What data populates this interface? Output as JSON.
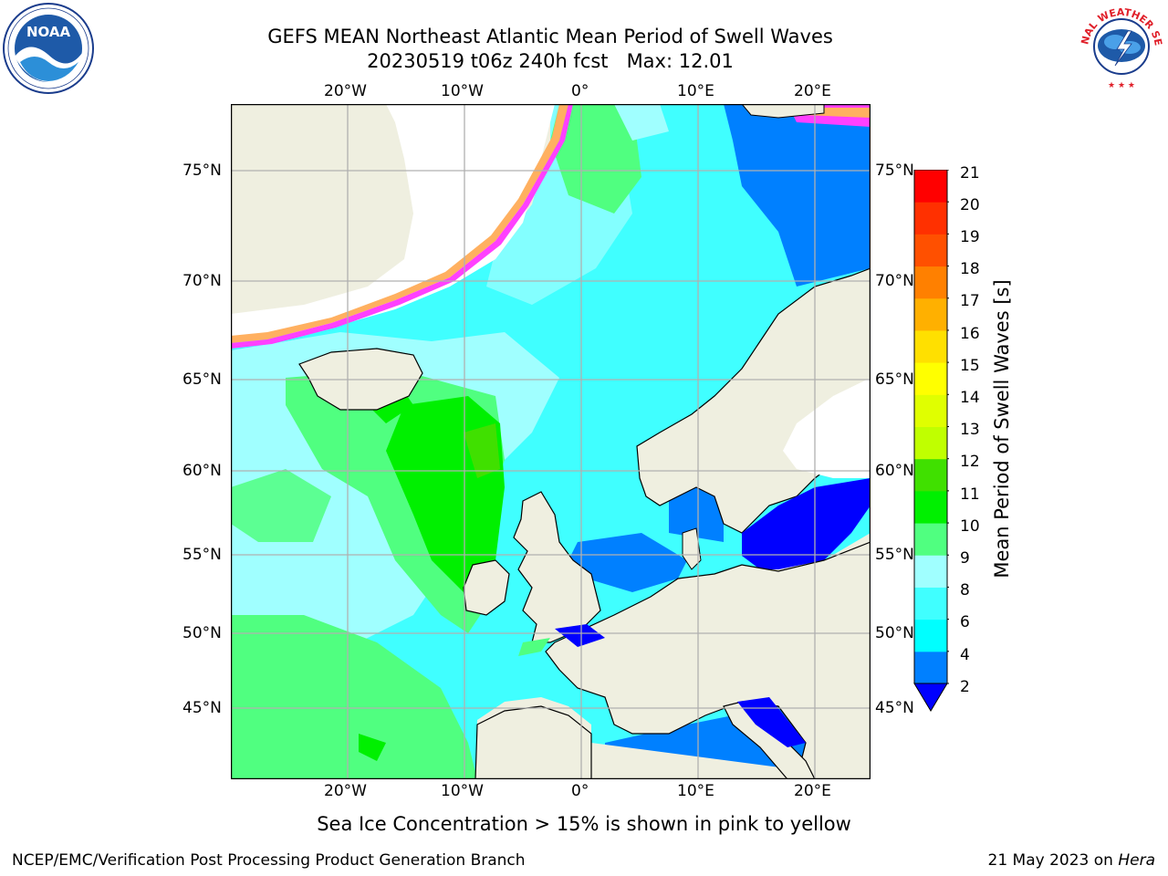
{
  "header": {
    "title_line1": "GEFS MEAN Northeast Atlantic Mean Period of Swell Waves",
    "title_line2": "20230519 t06z 240h fcst   Max: 12.01"
  },
  "logos": {
    "left": {
      "name": "NOAA",
      "ring_text": "NATIONAL OCEANIC AND ATMOSPHERIC ADMINISTRATION · U.S. DEPARTMENT OF COMMERCE"
    },
    "right": {
      "name": "NATIONAL WEATHER SERVICE"
    }
  },
  "map": {
    "lon_labels": [
      "20°W",
      "10°W",
      "0°",
      "10°E",
      "20°E"
    ],
    "lat_labels": [
      "75°N",
      "70°N",
      "65°N",
      "60°N",
      "55°N",
      "50°N",
      "45°N"
    ]
  },
  "colorbar": {
    "label": "Mean Period of Swell Waves [s]",
    "ticks": [
      "21",
      "20",
      "19",
      "18",
      "17",
      "16",
      "15",
      "14",
      "13",
      "12",
      "11",
      "10",
      "9",
      "8",
      "6",
      "4",
      "2"
    ],
    "levels": [
      {
        "from": 2,
        "to": 4,
        "color": "#0080ff"
      },
      {
        "from": 4,
        "to": 6,
        "color": "#00ffff"
      },
      {
        "from": 6,
        "to": 8,
        "color": "#40ffff"
      },
      {
        "from": 8,
        "to": 9,
        "color": "#a0ffff"
      },
      {
        "from": 9,
        "to": 10,
        "color": "#50ff80"
      },
      {
        "from": 10,
        "to": 11,
        "color": "#00f000"
      },
      {
        "from": 11,
        "to": 12,
        "color": "#40e000"
      },
      {
        "from": 12,
        "to": 13,
        "color": "#c0ff00"
      },
      {
        "from": 13,
        "to": 14,
        "color": "#e0ff00"
      },
      {
        "from": 14,
        "to": 15,
        "color": "#ffff00"
      },
      {
        "from": 15,
        "to": 16,
        "color": "#ffe000"
      },
      {
        "from": 16,
        "to": 17,
        "color": "#ffb000"
      },
      {
        "from": 17,
        "to": 18,
        "color": "#ff8000"
      },
      {
        "from": 18,
        "to": 19,
        "color": "#ff5000"
      },
      {
        "from": 19,
        "to": 20,
        "color": "#ff3000"
      },
      {
        "from": 20,
        "to": 21,
        "color": "#ff0000"
      }
    ],
    "under_color": "#0000ff"
  },
  "caption": "Sea Ice Concentration > 15% is shown in pink to yellow",
  "footer": {
    "left": "NCEP/EMC/Verification Post Processing Product Generation Branch",
    "date": "21 May 2023 on ",
    "machine": "Hera"
  },
  "colors": {
    "land": "#efefe0",
    "grid": "#b0b0b0",
    "ice_pink": "#ff40ff",
    "ice_orange": "#ffb060",
    "ice_yellow": "#ffe060"
  }
}
